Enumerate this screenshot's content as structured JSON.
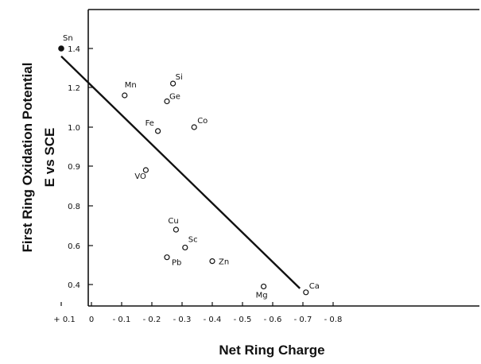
{
  "chart_data": {
    "type": "scatter",
    "xlabel": "Net Ring Charge",
    "ylabel_line1": "First Ring Oxidation Potential",
    "ylabel_line2": "E vs SCE",
    "xlim": [
      0.1,
      -0.9
    ],
    "ylim": [
      0.35,
      1.5
    ],
    "x_ticks": [
      {
        "value": 0.1,
        "label": "+ 0.1"
      },
      {
        "value": 0,
        "label": "0"
      },
      {
        "value": -0.1,
        "label": "- 0.1"
      },
      {
        "value": -0.2,
        "label": "- 0.2"
      },
      {
        "value": -0.3,
        "label": "- 0.3"
      },
      {
        "value": -0.4,
        "label": "- 0.4"
      },
      {
        "value": -0.5,
        "label": "- 0.5"
      },
      {
        "value": -0.6,
        "label": "- 0.6"
      },
      {
        "value": -0.7,
        "label": "- 0.7"
      },
      {
        "value": -0.8,
        "label": "- 0.8"
      }
    ],
    "y_ticks": [
      {
        "value": 1.4,
        "label": "1.4"
      },
      {
        "value": 1.2,
        "label": "1.2"
      },
      {
        "value": 1.0,
        "label": "1.0"
      },
      {
        "value": 0.9,
        "label": "0.9"
      },
      {
        "value": 0.8,
        "label": "0.8"
      },
      {
        "value": 0.6,
        "label": "0.6"
      },
      {
        "value": 0.4,
        "label": "0.4"
      }
    ],
    "points": [
      {
        "label": "Sn",
        "x": 0.1,
        "y": 1.4,
        "filled": true
      },
      {
        "label": "Mn",
        "x": -0.11,
        "y": 1.16
      },
      {
        "label": "Si",
        "x": -0.27,
        "y": 1.22
      },
      {
        "label": "Ge",
        "x": -0.25,
        "y": 1.13
      },
      {
        "label": "Fe",
        "x": -0.22,
        "y": 0.99
      },
      {
        "label": "Co",
        "x": -0.34,
        "y": 1.0
      },
      {
        "label": "VO",
        "x": -0.18,
        "y": 0.89
      },
      {
        "label": "Cu",
        "x": -0.28,
        "y": 0.68
      },
      {
        "label": "Sc",
        "x": -0.31,
        "y": 0.59
      },
      {
        "label": "Pb",
        "x": -0.25,
        "y": 0.54
      },
      {
        "label": "Zn",
        "x": -0.4,
        "y": 0.52
      },
      {
        "label": "Mg",
        "x": -0.57,
        "y": 0.39
      },
      {
        "label": "Ca",
        "x": -0.71,
        "y": 0.36
      }
    ],
    "fit_line": {
      "x": [
        0.1,
        -0.69
      ],
      "y": [
        1.36,
        0.38
      ]
    },
    "grid": false
  }
}
